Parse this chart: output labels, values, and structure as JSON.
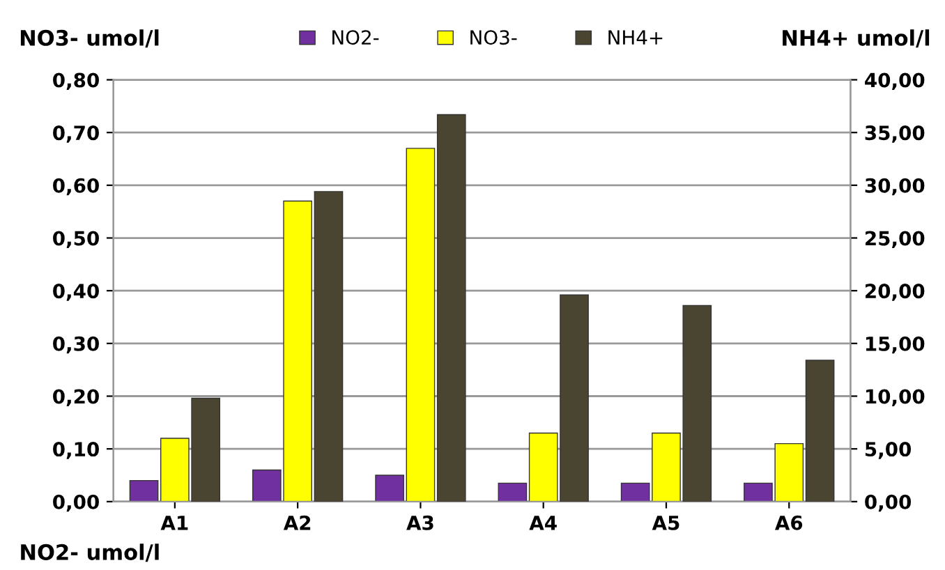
{
  "chart_data": {
    "type": "bar",
    "categories": [
      "A1",
      "A2",
      "A3",
      "A4",
      "A5",
      "A6"
    ],
    "ylabel": "NO3- umol/l",
    "y2label": "NH4+ umol/l",
    "annotations": [
      "NO2- umol/l"
    ],
    "series": [
      {
        "name": "NO2-",
        "color": "#7030a0",
        "values": [
          0.04,
          0.06,
          0.05,
          0.035,
          0.035,
          0.035
        ]
      },
      {
        "name": "NO3-",
        "color": "#ffff00",
        "values": [
          0.12,
          0.57,
          0.67,
          0.13,
          0.13,
          0.11
        ]
      },
      {
        "name": "NH4+",
        "color": "#4a4530",
        "axis": "y2",
        "values": [
          9.8,
          29.4,
          36.7,
          19.6,
          18.6,
          13.4
        ]
      }
    ],
    "ylim": [
      0,
      0.8
    ],
    "yticks": [
      {
        "value": 0,
        "label": "0,00"
      },
      {
        "value": 0.1,
        "label": "0,10"
      },
      {
        "value": 0.2,
        "label": "0,20"
      },
      {
        "value": 0.3,
        "label": "0,30"
      },
      {
        "value": 0.4,
        "label": "0,40"
      },
      {
        "value": 0.5,
        "label": "0,50"
      },
      {
        "value": 0.6,
        "label": "0,60"
      },
      {
        "value": 0.7,
        "label": "0,70"
      },
      {
        "value": 0.8,
        "label": "0,80"
      }
    ],
    "y2lim": [
      0,
      40
    ],
    "y2ticks": [
      {
        "value": 0,
        "label": "0,00"
      },
      {
        "value": 5,
        "label": "5,00"
      },
      {
        "value": 10,
        "label": "10,00"
      },
      {
        "value": 15,
        "label": "15,00"
      },
      {
        "value": 20,
        "label": "20,00"
      },
      {
        "value": 25,
        "label": "25,00"
      },
      {
        "value": 30,
        "label": "30,00"
      },
      {
        "value": 35,
        "label": "35,00"
      },
      {
        "value": 40,
        "label": "40,00"
      }
    ],
    "grid": "y",
    "legend": "top"
  }
}
